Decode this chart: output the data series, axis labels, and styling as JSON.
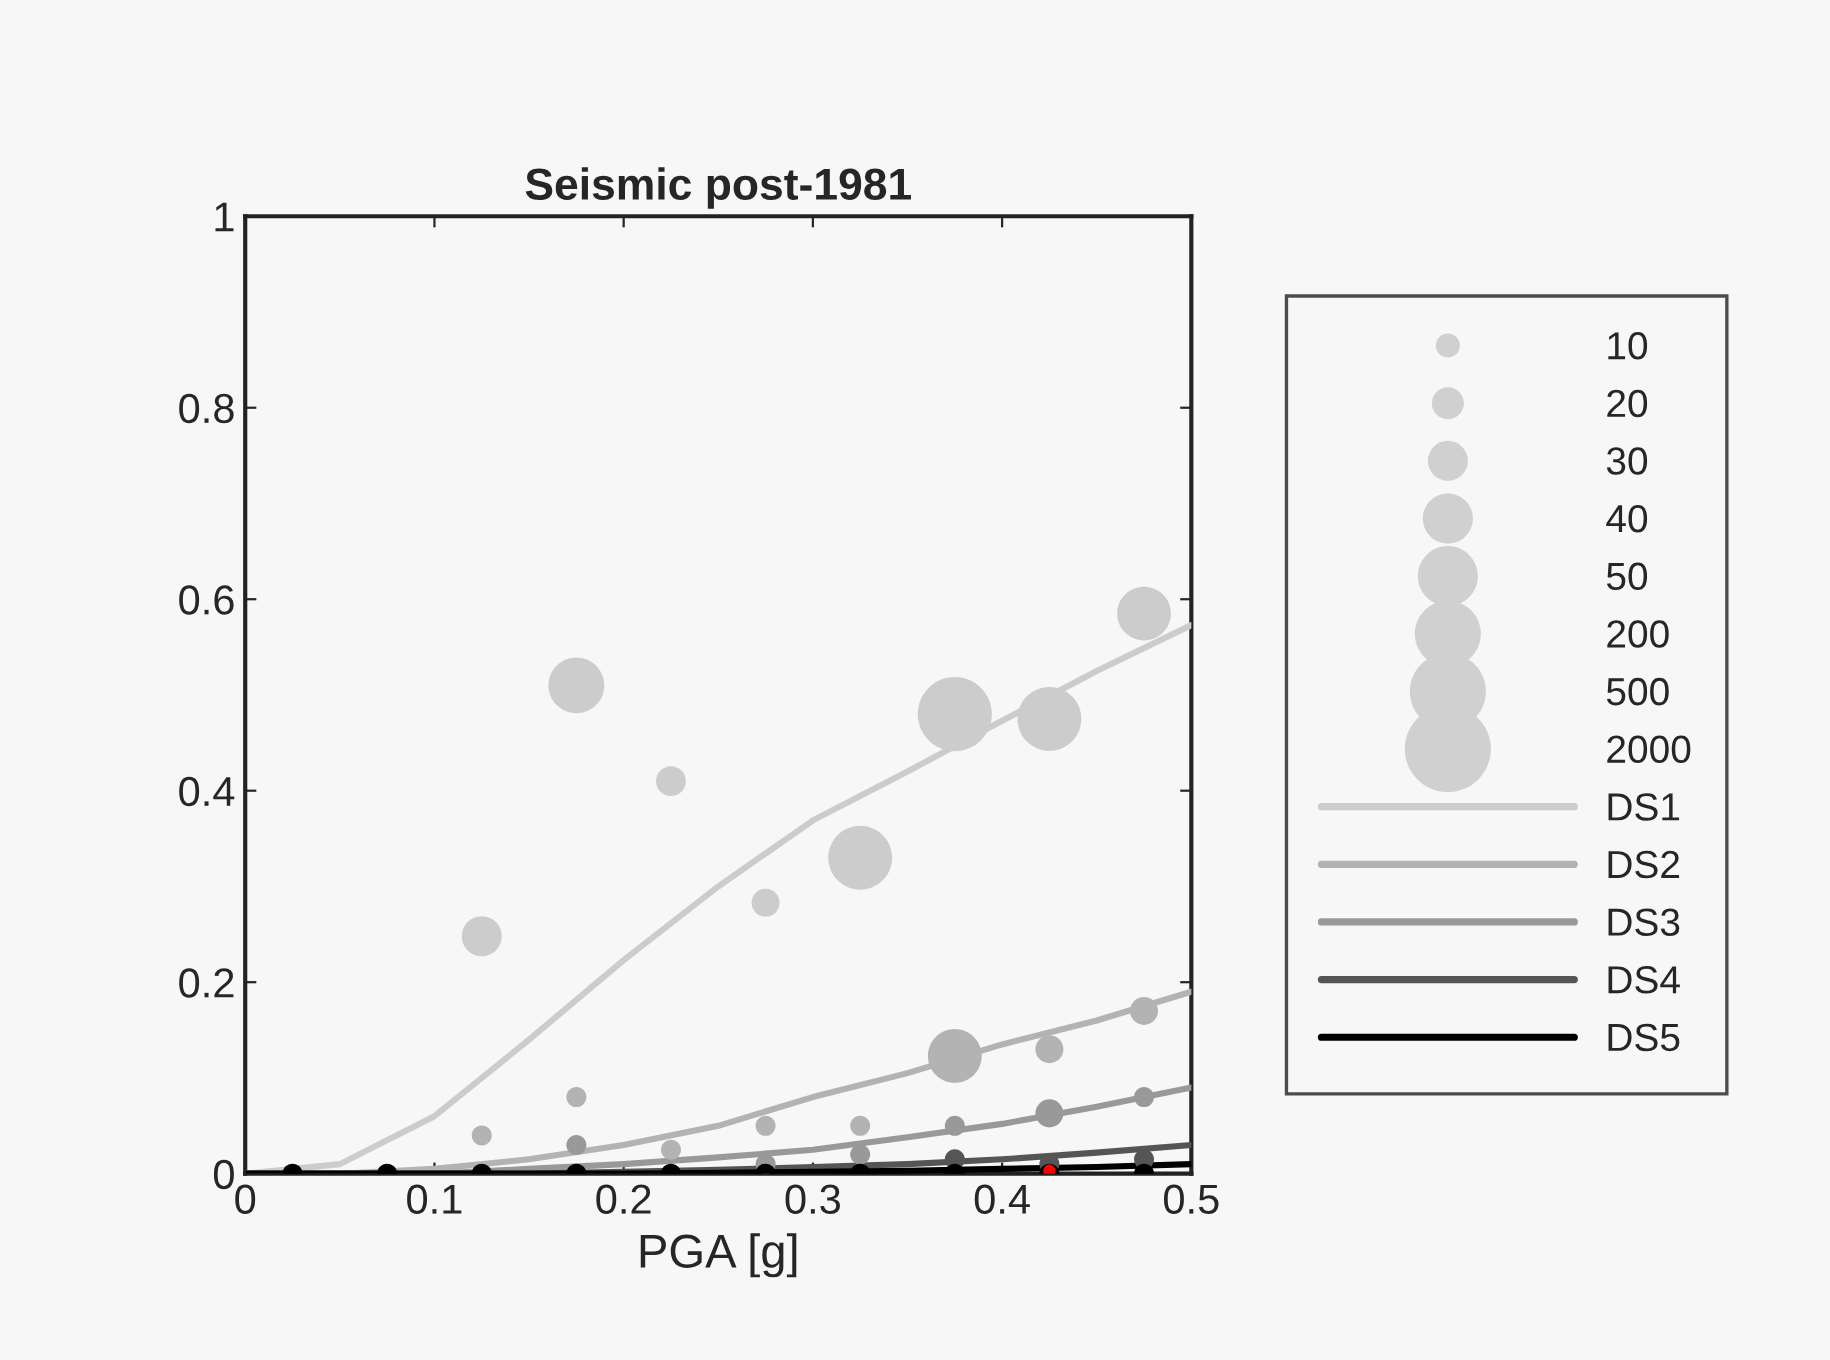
{
  "chart_data": {
    "type": "bubble",
    "title": "Seismic post-1981",
    "xlabel": "PGA [g]",
    "x": [
      0.025,
      0.075,
      0.125,
      0.175,
      0.225,
      0.275,
      0.325,
      0.375,
      0.425,
      0.475
    ],
    "size_legend": [
      {
        "value": 0.078,
        "label": "10"
      },
      {
        "value": 0.138,
        "label": "20"
      },
      {
        "value": 0.216,
        "label": "30"
      },
      {
        "value": 0.338,
        "label": "40"
      },
      {
        "value": 0.487,
        "label": "50"
      },
      {
        "value": 0.589,
        "label": "200"
      },
      {
        "value": 0.781,
        "label": "500"
      },
      {
        "value": 1,
        "label": "2000"
      }
    ],
    "series": [
      {
        "color": "#cccccc",
        "values": [
          null,
          null,
          0.248,
          0.51,
          0.41,
          0.283,
          0.33,
          0.48,
          0.475,
          0.585
        ],
        "sizes": [
          null,
          null,
          0.216,
          0.42,
          0.12,
          0.106,
          0.55,
          0.74,
          0.55,
          0.39
        ]
      },
      {
        "color": "#b3b3b3",
        "values": [
          null,
          null,
          0.04,
          0.08,
          0.025,
          0.05,
          0.05,
          0.123,
          0.13,
          0.17
        ],
        "sizes": [
          null,
          null,
          0.054,
          0.054,
          0.054,
          0.054,
          0.054,
          0.39,
          0.106,
          0.106
        ]
      },
      {
        "color": "#999999",
        "values": [
          null,
          null,
          null,
          0.03,
          null,
          0.01,
          0.02,
          0.05,
          0.063,
          0.08
        ],
        "sizes": [
          null,
          null,
          null,
          0.054,
          null,
          0.054,
          0.054,
          0.054,
          0.106,
          0.054
        ]
      },
      {
        "color": "#555555",
        "values": [
          null,
          null,
          null,
          null,
          null,
          null,
          null,
          0.015,
          0.01,
          0.015
        ],
        "sizes": [
          null,
          null,
          null,
          null,
          null,
          null,
          null,
          0.054,
          0.054,
          0.054
        ]
      },
      {
        "color": "#000000",
        "values": [
          0,
          0,
          0,
          0,
          0,
          0,
          0,
          0,
          0,
          0
        ],
        "sizes": [
          0.054,
          0.054,
          0.054,
          0.054,
          0.054,
          0.054,
          0.054,
          0.054,
          0.054,
          0.054
        ]
      },
      {
        "type": "scatter",
        "color": "#ff0000",
        "x": [
          0.425
        ],
        "values": [
          0.003
        ]
      },
      {
        "type": "line",
        "name": "DS1",
        "color": "#cccccc",
        "x": [
          0,
          0.05,
          0.1,
          0.15,
          0.2,
          0.25,
          0.3,
          0.35,
          0.4,
          0.45,
          0.5
        ],
        "values": [
          0,
          0.01,
          0.06,
          0.14,
          0.223,
          0.3,
          0.369,
          0.42,
          0.473,
          0.525,
          0.573
        ]
      },
      {
        "type": "line",
        "name": "DS2",
        "color": "#b3b3b3",
        "x": [
          0,
          0.05,
          0.1,
          0.15,
          0.2,
          0.25,
          0.3,
          0.35,
          0.4,
          0.45,
          0.5
        ],
        "values": [
          0,
          0,
          0.005,
          0.015,
          0.03,
          0.05,
          0.08,
          0.105,
          0.135,
          0.16,
          0.19
        ]
      },
      {
        "type": "line",
        "name": "DS3",
        "color": "#999999",
        "x": [
          0,
          0.05,
          0.1,
          0.15,
          0.2,
          0.25,
          0.3,
          0.35,
          0.4,
          0.45,
          0.5
        ],
        "values": [
          0,
          0,
          0,
          0.005,
          0.01,
          0.017,
          0.025,
          0.038,
          0.052,
          0.07,
          0.09
        ]
      },
      {
        "type": "line",
        "name": "DS4",
        "color": "#555555",
        "x": [
          0,
          0.05,
          0.1,
          0.15,
          0.2,
          0.25,
          0.3,
          0.35,
          0.4,
          0.45,
          0.5
        ],
        "values": [
          0,
          0,
          0,
          0,
          0.002,
          0.004,
          0.007,
          0.01,
          0.015,
          0.022,
          0.03
        ]
      },
      {
        "type": "line",
        "name": "DS5",
        "color": "#000000",
        "x": [
          0,
          0.05,
          0.1,
          0.15,
          0.2,
          0.25,
          0.3,
          0.35,
          0.4,
          0.45,
          0.5
        ],
        "values": [
          0,
          0,
          0,
          0,
          0,
          0.001,
          0.002,
          0.003,
          0.005,
          0.007,
          0.01
        ]
      }
    ],
    "xlim": [
      0,
      0.5
    ],
    "xticks": [
      0,
      0.1,
      0.2,
      0.3,
      0.4,
      0.5
    ],
    "ylim": [
      0,
      1
    ],
    "yticks": [
      0,
      0.2,
      0.4,
      0.6,
      0.8,
      1
    ],
    "legend": "right"
  }
}
